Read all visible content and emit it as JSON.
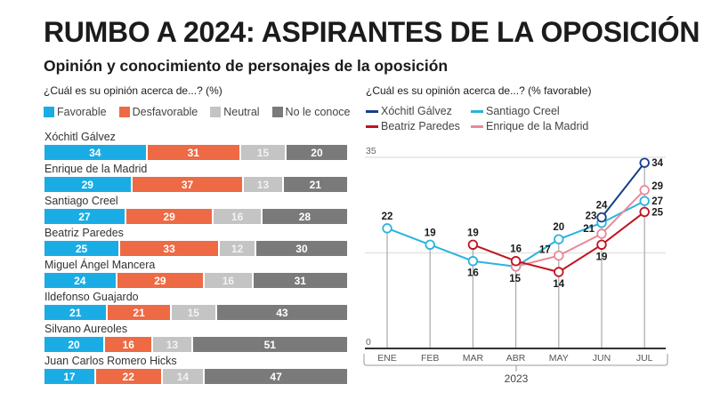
{
  "header": {
    "title": "RUMBO A 2024: ASPIRANTES DE LA OPOSICIÓN",
    "subtitle": "Opinión y conocimiento de personajes de la oposición"
  },
  "colors": {
    "favorable": "#1aace4",
    "desfavorable": "#ee6a44",
    "neutral": "#c4c4c4",
    "no_conoce": "#7a7a7a",
    "xochitl": "#173f8a",
    "creel": "#2bb3dd",
    "paredes": "#c0141f",
    "madrid": "#e88a9a"
  },
  "chart_data": [
    {
      "type": "bar",
      "stacked": true,
      "orientation": "horizontal",
      "title": "¿Cuál es su opinión acerca de...? (%)",
      "legend": [
        "Favorable",
        "Desfavorable",
        "Neutral",
        "No le conoce"
      ],
      "legend_position": "top-left",
      "categories": [
        "Xóchitl Gálvez",
        "Enrique de la Madrid",
        "Santiago Creel",
        "Beatriz Paredes",
        "Miguel Ángel Mancera",
        "Ildefonso Guajardo",
        "Silvano Aureoles",
        "Juan Carlos Romero Hicks"
      ],
      "series": [
        {
          "name": "Favorable",
          "values": [
            34,
            29,
            27,
            25,
            24,
            21,
            20,
            17
          ]
        },
        {
          "name": "Desfavorable",
          "values": [
            31,
            37,
            29,
            33,
            29,
            21,
            16,
            22
          ]
        },
        {
          "name": "Neutral",
          "values": [
            15,
            13,
            16,
            12,
            16,
            15,
            13,
            14
          ]
        },
        {
          "name": "No le conoce",
          "values": [
            20,
            21,
            28,
            30,
            31,
            43,
            51,
            47
          ]
        }
      ]
    },
    {
      "type": "line",
      "title": "¿Cuál es su opinión acerca de...? (% favorable)",
      "x": [
        "ENE",
        "FEB",
        "MAR",
        "ABR",
        "MAY",
        "JUN",
        "JUL"
      ],
      "xlabel": "2023",
      "ylabel": "",
      "ylim": [
        0,
        35
      ],
      "yticks": [
        "0",
        "35"
      ],
      "gridline": 17.5,
      "legend_position": "top-left",
      "series": [
        {
          "name": "Xóchitl Gálvez",
          "key": "xochitl",
          "values": [
            null,
            null,
            null,
            null,
            null,
            24,
            34
          ]
        },
        {
          "name": "Santiago Creel",
          "key": "creel",
          "values": [
            22,
            19,
            16,
            15,
            20,
            23,
            27
          ]
        },
        {
          "name": "Beatriz Paredes",
          "key": "paredes",
          "values": [
            null,
            null,
            19,
            16,
            14,
            19,
            25
          ]
        },
        {
          "name": "Enrique de la Madrid",
          "key": "madrid",
          "values": [
            null,
            null,
            null,
            15,
            17,
            21,
            29
          ]
        }
      ]
    }
  ]
}
